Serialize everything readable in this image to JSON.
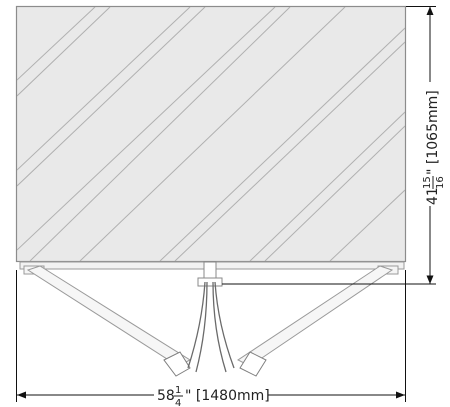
{
  "colors": {
    "glass_fill": "#e9e9e9",
    "glass_edge": "#8c8c8c",
    "hatch": "#b0b0b0",
    "hardware": "#9a9a9a",
    "dimension": "#111111"
  },
  "dimensions": {
    "height": {
      "whole": "41",
      "frac_num": "15",
      "frac_den": "16",
      "suffix": "\" [1065mm]"
    },
    "width": {
      "whole": "58",
      "frac_num": "1",
      "frac_den": "4",
      "suffix": "\" [1480mm]"
    }
  }
}
